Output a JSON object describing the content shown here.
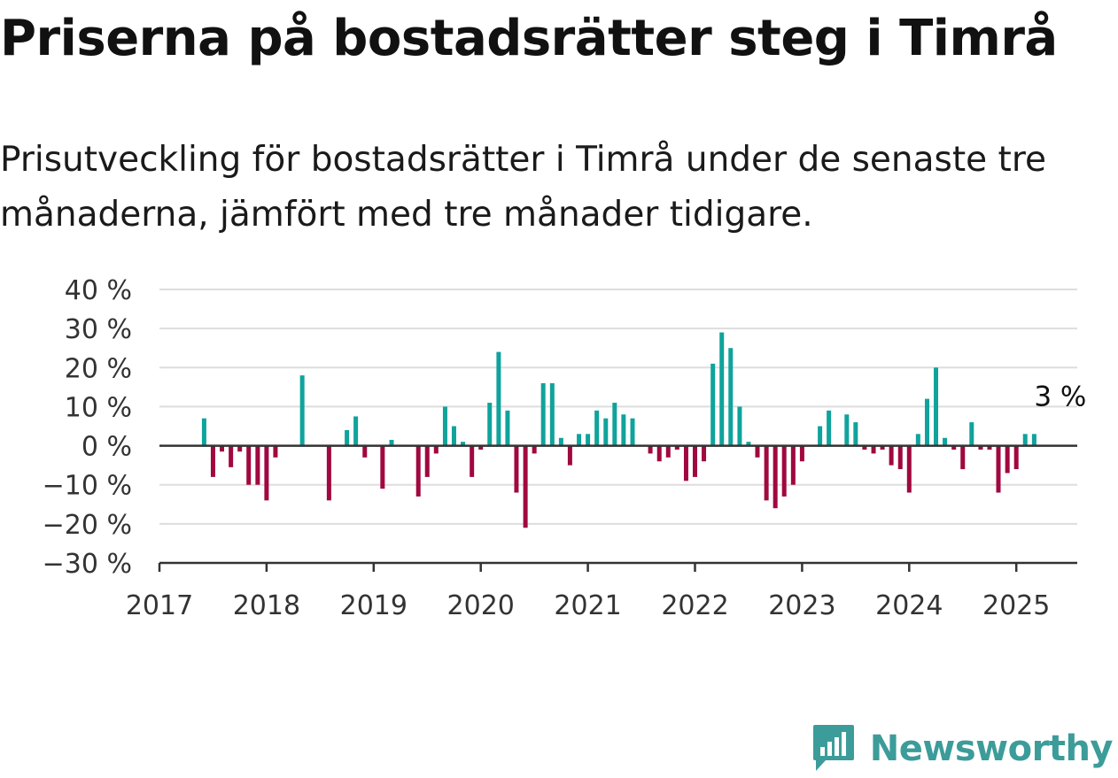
{
  "title": "Priserna på bostadsrätter steg i Timrå",
  "subtitle": "Prisutveckling för bostadsrätter i Timrå under de senaste tre månaderna, jämfört med tre månader tidigare.",
  "brand": {
    "name": "Newsworthy",
    "logo_icon": "bar-chart-badge-icon",
    "color": "#3c9c9a"
  },
  "colors": {
    "positive": "#0fa39c",
    "negative": "#a0083f",
    "grid": "#dddddd",
    "axis": "#333333"
  },
  "chart_data": {
    "type": "bar",
    "title": "Priserna på bostadsrätter steg i Timrå",
    "xlabel": "",
    "ylabel": "",
    "ylim": [
      -30,
      40
    ],
    "xlim": [
      2017.0,
      2025.6
    ],
    "y_ticks": [
      40,
      30,
      20,
      10,
      0,
      -10,
      -20,
      -30
    ],
    "y_tick_labels": [
      "40 %",
      "30 %",
      "20 %",
      "10 %",
      "0 %",
      "−10 %",
      "−20 %",
      "−30 %"
    ],
    "x_ticks": [
      2017,
      2018,
      2019,
      2020,
      2021,
      2022,
      2023,
      2024,
      2025
    ],
    "x_tick_labels": [
      "2017",
      "2018",
      "2019",
      "2020",
      "2021",
      "2022",
      "2023",
      "2024",
      "2025"
    ],
    "grid": true,
    "annotation": {
      "text": "3 %",
      "x": 2025.08,
      "y": 3
    },
    "data": [
      {
        "x": 2017.417,
        "y": 7
      },
      {
        "x": 2017.5,
        "y": -8
      },
      {
        "x": 2017.583,
        "y": -1.5
      },
      {
        "x": 2017.667,
        "y": -5.5
      },
      {
        "x": 2017.75,
        "y": -1.5
      },
      {
        "x": 2017.833,
        "y": -10
      },
      {
        "x": 2017.917,
        "y": -10
      },
      {
        "x": 2018.0,
        "y": -14
      },
      {
        "x": 2018.083,
        "y": -3
      },
      {
        "x": 2018.333,
        "y": 18
      },
      {
        "x": 2018.583,
        "y": -14
      },
      {
        "x": 2018.75,
        "y": 4
      },
      {
        "x": 2018.833,
        "y": 7.5
      },
      {
        "x": 2018.917,
        "y": -3
      },
      {
        "x": 2019.083,
        "y": -11
      },
      {
        "x": 2019.167,
        "y": 1.5
      },
      {
        "x": 2019.417,
        "y": -13
      },
      {
        "x": 2019.5,
        "y": -8
      },
      {
        "x": 2019.583,
        "y": -2
      },
      {
        "x": 2019.667,
        "y": 10
      },
      {
        "x": 2019.75,
        "y": 5
      },
      {
        "x": 2019.833,
        "y": 1
      },
      {
        "x": 2019.917,
        "y": -8
      },
      {
        "x": 2020.0,
        "y": -1
      },
      {
        "x": 2020.083,
        "y": 11
      },
      {
        "x": 2020.167,
        "y": 24
      },
      {
        "x": 2020.25,
        "y": 9
      },
      {
        "x": 2020.333,
        "y": -12
      },
      {
        "x": 2020.417,
        "y": -21
      },
      {
        "x": 2020.5,
        "y": -2
      },
      {
        "x": 2020.583,
        "y": 16
      },
      {
        "x": 2020.667,
        "y": 16
      },
      {
        "x": 2020.75,
        "y": 2
      },
      {
        "x": 2020.833,
        "y": -5
      },
      {
        "x": 2020.917,
        "y": 3
      },
      {
        "x": 2021.0,
        "y": 3
      },
      {
        "x": 2021.083,
        "y": 9
      },
      {
        "x": 2021.167,
        "y": 7
      },
      {
        "x": 2021.25,
        "y": 11
      },
      {
        "x": 2021.333,
        "y": 8
      },
      {
        "x": 2021.417,
        "y": 7
      },
      {
        "x": 2021.583,
        "y": -2
      },
      {
        "x": 2021.667,
        "y": -4
      },
      {
        "x": 2021.75,
        "y": -3
      },
      {
        "x": 2021.833,
        "y": -1
      },
      {
        "x": 2021.917,
        "y": -9
      },
      {
        "x": 2022.0,
        "y": -8
      },
      {
        "x": 2022.083,
        "y": -4
      },
      {
        "x": 2022.167,
        "y": 21
      },
      {
        "x": 2022.25,
        "y": 29
      },
      {
        "x": 2022.333,
        "y": 25
      },
      {
        "x": 2022.417,
        "y": 10
      },
      {
        "x": 2022.5,
        "y": 1
      },
      {
        "x": 2022.583,
        "y": -3
      },
      {
        "x": 2022.667,
        "y": -14
      },
      {
        "x": 2022.75,
        "y": -16
      },
      {
        "x": 2022.833,
        "y": -13
      },
      {
        "x": 2022.917,
        "y": -10
      },
      {
        "x": 2023.0,
        "y": -4
      },
      {
        "x": 2023.167,
        "y": 5
      },
      {
        "x": 2023.25,
        "y": 9
      },
      {
        "x": 2023.417,
        "y": 8
      },
      {
        "x": 2023.5,
        "y": 6
      },
      {
        "x": 2023.583,
        "y": -1
      },
      {
        "x": 2023.667,
        "y": -2
      },
      {
        "x": 2023.75,
        "y": -1
      },
      {
        "x": 2023.833,
        "y": -5
      },
      {
        "x": 2023.917,
        "y": -6
      },
      {
        "x": 2024.0,
        "y": -12
      },
      {
        "x": 2024.083,
        "y": 3
      },
      {
        "x": 2024.167,
        "y": 12
      },
      {
        "x": 2024.25,
        "y": 20
      },
      {
        "x": 2024.333,
        "y": 2
      },
      {
        "x": 2024.417,
        "y": -1
      },
      {
        "x": 2024.5,
        "y": -6
      },
      {
        "x": 2024.583,
        "y": 6
      },
      {
        "x": 2024.667,
        "y": -1
      },
      {
        "x": 2024.75,
        "y": -1
      },
      {
        "x": 2024.833,
        "y": -12
      },
      {
        "x": 2024.917,
        "y": -7
      },
      {
        "x": 2025.0,
        "y": -6
      },
      {
        "x": 2025.083,
        "y": 3
      },
      {
        "x": 2025.167,
        "y": 3
      }
    ]
  }
}
